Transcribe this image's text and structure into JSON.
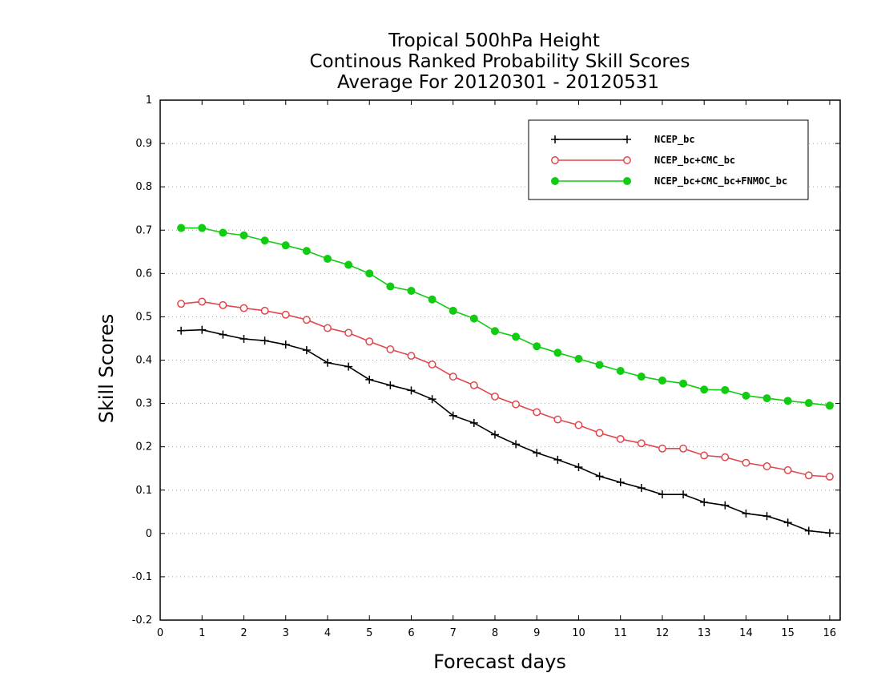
{
  "chart_data": {
    "type": "line",
    "title": [
      "Tropical 500hPa Height",
      "Continous Ranked Probability Skill Scores",
      "Average For 20120301 - 20120531"
    ],
    "xlabel": "Forecast days",
    "ylabel": "Skill Scores",
    "xlim": [
      0,
      16.25
    ],
    "ylim": [
      -0.2,
      1
    ],
    "xticks": [
      0,
      1,
      2,
      3,
      4,
      5,
      6,
      7,
      8,
      9,
      10,
      11,
      12,
      13,
      14,
      15,
      16
    ],
    "xtick_labels": [
      "0",
      "1",
      "2",
      "3",
      "4",
      "5",
      "6",
      "7",
      "8",
      "9",
      "10",
      "11",
      "12",
      "13",
      "14",
      "15",
      "16"
    ],
    "yticks": [
      -0.2,
      -0.1,
      0,
      0.1,
      0.2,
      0.3,
      0.4,
      0.5,
      0.6,
      0.7,
      0.8,
      0.9,
      1
    ],
    "ytick_labels": [
      "-0.2",
      "-0.1",
      "0",
      "0.1",
      "0.2",
      "0.3",
      "0.4",
      "0.5",
      "0.6",
      "0.7",
      "0.8",
      "0.9",
      "1"
    ],
    "grid": "horizontal dotted",
    "legend_position": "top-right",
    "x": [
      0.5,
      1,
      1.5,
      2,
      2.5,
      3,
      3.5,
      4,
      4.5,
      5,
      5.5,
      6,
      6.5,
      7,
      7.5,
      8,
      8.5,
      9,
      9.5,
      10,
      10.5,
      11,
      11.5,
      12,
      12.5,
      13,
      13.5,
      14,
      14.5,
      15,
      15.5,
      16
    ],
    "series": [
      {
        "name": "NCEP_bc",
        "color": "#000000",
        "marker": "plus",
        "values": [
          0.468,
          0.47,
          0.459,
          0.449,
          0.445,
          0.436,
          0.423,
          0.394,
          0.385,
          0.355,
          0.342,
          0.33,
          0.31,
          0.272,
          0.255,
          0.228,
          0.206,
          0.186,
          0.17,
          0.153,
          0.132,
          0.118,
          0.105,
          0.09,
          0.09,
          0.072,
          0.065,
          0.046,
          0.04,
          0.025,
          0.006,
          0.001
        ]
      },
      {
        "name": "NCEP_bc+CMC_bc",
        "color": "#e0474c",
        "marker": "open-circle",
        "values": [
          0.53,
          0.535,
          0.527,
          0.52,
          0.514,
          0.505,
          0.493,
          0.474,
          0.463,
          0.443,
          0.425,
          0.41,
          0.39,
          0.362,
          0.342,
          0.316,
          0.298,
          0.28,
          0.263,
          0.25,
          0.232,
          0.218,
          0.208,
          0.196,
          0.196,
          0.18,
          0.176,
          0.163,
          0.155,
          0.146,
          0.134,
          0.131
        ]
      },
      {
        "name": "NCEP_bc+CMC_bc+FNMOC_bc",
        "color": "#11cc11",
        "marker": "filled-circle",
        "values": [
          0.705,
          0.705,
          0.694,
          0.688,
          0.676,
          0.665,
          0.652,
          0.634,
          0.62,
          0.6,
          0.57,
          0.56,
          0.54,
          0.514,
          0.496,
          0.467,
          0.454,
          0.432,
          0.417,
          0.403,
          0.389,
          0.375,
          0.362,
          0.353,
          0.346,
          0.332,
          0.331,
          0.318,
          0.312,
          0.306,
          0.301,
          0.295
        ]
      }
    ]
  }
}
